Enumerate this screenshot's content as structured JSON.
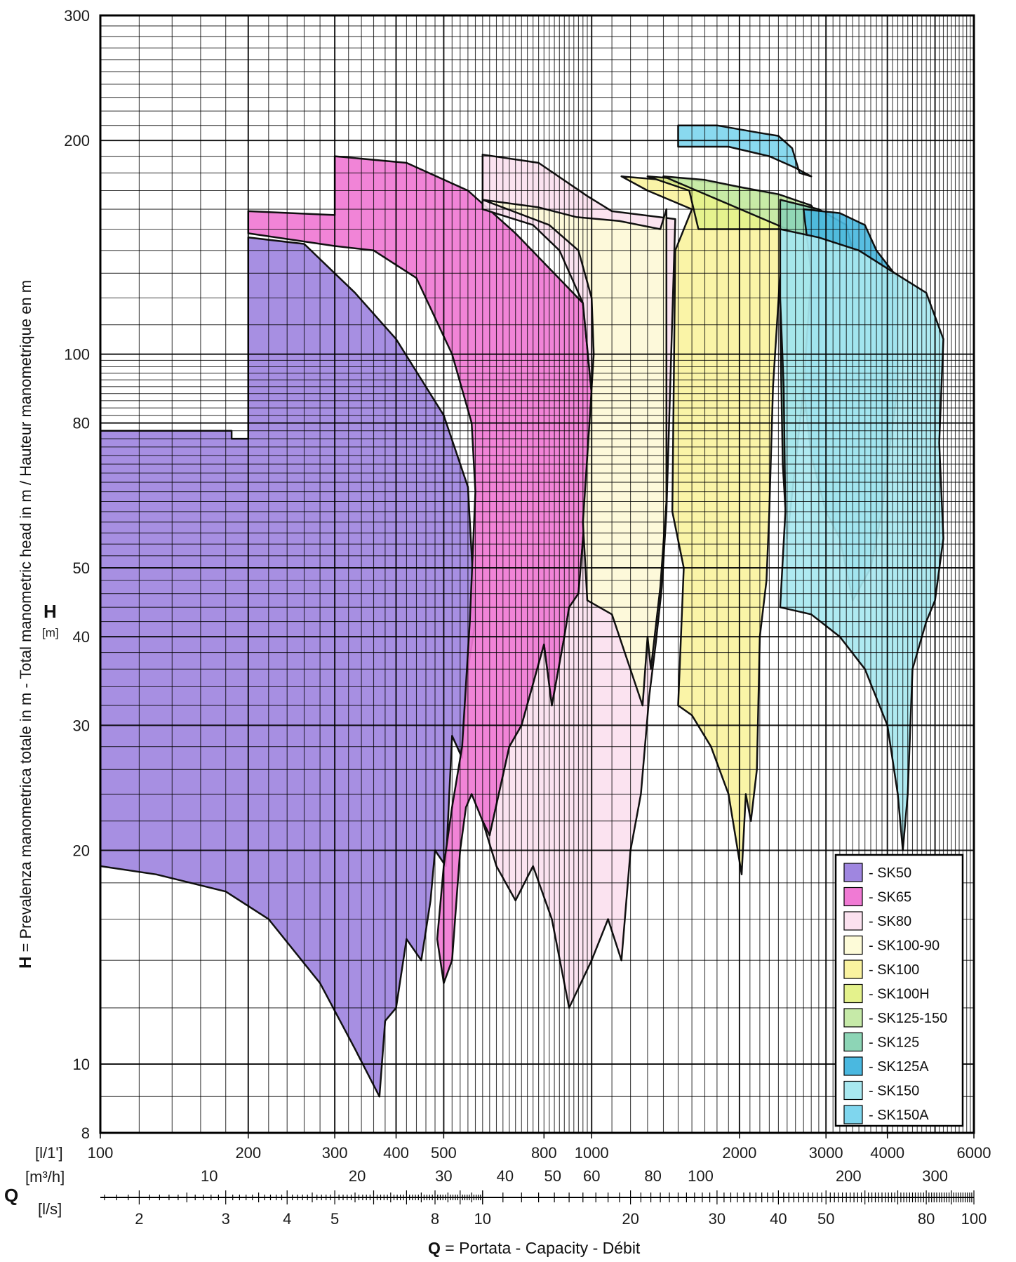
{
  "chart_data": {
    "type": "area",
    "title": "",
    "x_scale": "log",
    "y_scale": "log",
    "xlim": [
      100,
      6000
    ],
    "ylim": [
      8,
      300
    ],
    "grid": true,
    "legend_position": "bottom-right",
    "ylabel": {
      "bold": "H",
      "rest": " = Prevalenza manometrica totale in m - Total manometric head in m / Hauteur manometrique en m",
      "symbol": "H",
      "unit": "[m]"
    },
    "xlabel": {
      "bold": "Q",
      "rest": " = Portata - Capacity - Débit",
      "symbol": "Q"
    },
    "y_ticks": [
      {
        "value": 300,
        "label": "300"
      },
      {
        "value": 200,
        "label": "200"
      },
      {
        "value": 100,
        "label": "100"
      },
      {
        "value": 80,
        "label": "80"
      },
      {
        "value": 50,
        "label": "50"
      },
      {
        "value": 40,
        "label": "40"
      },
      {
        "value": 30,
        "label": "30"
      },
      {
        "value": 20,
        "label": "20"
      },
      {
        "value": 10,
        "label": "10"
      },
      {
        "value": 8,
        "label": "8"
      }
    ],
    "x_axes": [
      {
        "unit": "[l/1']",
        "ticks": [
          {
            "value": 100,
            "label": "100"
          },
          {
            "value": 200,
            "label": "200"
          },
          {
            "value": 300,
            "label": "300"
          },
          {
            "value": 400,
            "label": "400"
          },
          {
            "value": 500,
            "label": "500"
          },
          {
            "value": 800,
            "label": "800"
          },
          {
            "value": 1000,
            "label": "1000"
          },
          {
            "value": 2000,
            "label": "2000"
          },
          {
            "value": 3000,
            "label": "3000"
          },
          {
            "value": 4000,
            "label": "4000"
          },
          {
            "value": 6000,
            "label": "6000"
          }
        ]
      },
      {
        "unit": "[m³/h]",
        "ticks": [
          {
            "value": 10,
            "label": "10"
          },
          {
            "value": 20,
            "label": "20"
          },
          {
            "value": 30,
            "label": "30"
          },
          {
            "value": 40,
            "label": "40"
          },
          {
            "value": 50,
            "label": "50"
          },
          {
            "value": 60,
            "label": "60"
          },
          {
            "value": 80,
            "label": "80"
          },
          {
            "value": 100,
            "label": "100"
          },
          {
            "value": 200,
            "label": "200"
          },
          {
            "value": 300,
            "label": "300"
          }
        ]
      },
      {
        "unit": "[l/s]",
        "ticks": [
          {
            "value": 2,
            "label": "2"
          },
          {
            "value": 3,
            "label": "3"
          },
          {
            "value": 4,
            "label": "4"
          },
          {
            "value": 5,
            "label": "5"
          },
          {
            "value": 8,
            "label": "8"
          },
          {
            "value": 10,
            "label": "10"
          },
          {
            "value": 20,
            "label": "20"
          },
          {
            "value": 30,
            "label": "30"
          },
          {
            "value": 40,
            "label": "40"
          },
          {
            "value": 50,
            "label": "50"
          },
          {
            "value": 80,
            "label": "80"
          },
          {
            "value": 100,
            "label": "100"
          }
        ]
      }
    ],
    "series": [
      {
        "name": "- SK50",
        "color": "#9f86e0",
        "polygon": [
          [
            100,
            78
          ],
          [
            185,
            78
          ],
          [
            185,
            76
          ],
          [
            200,
            76
          ],
          [
            200,
            146
          ],
          [
            260,
            143
          ],
          [
            330,
            122
          ],
          [
            400,
            105
          ],
          [
            500,
            82
          ],
          [
            560,
            65
          ],
          [
            580,
            42
          ],
          [
            560,
            36
          ],
          [
            545,
            27
          ],
          [
            520,
            29
          ],
          [
            505,
            19
          ],
          [
            480,
            20
          ],
          [
            470,
            17
          ],
          [
            450,
            14
          ],
          [
            420,
            15
          ],
          [
            400,
            12
          ],
          [
            380,
            11.5
          ],
          [
            370,
            9
          ],
          [
            330,
            10.5
          ],
          [
            280,
            13
          ],
          [
            220,
            16
          ],
          [
            180,
            17.5
          ],
          [
            130,
            18.5
          ],
          [
            100,
            19
          ]
        ]
      },
      {
        "name": "- SK65",
        "color": "#f07ad4",
        "polygon": [
          [
            200,
            159
          ],
          [
            300,
            157
          ],
          [
            300,
            190
          ],
          [
            420,
            186
          ],
          [
            560,
            170
          ],
          [
            700,
            148
          ],
          [
            960,
            118
          ],
          [
            1000,
            88
          ],
          [
            980,
            65
          ],
          [
            940,
            46
          ],
          [
            900,
            44
          ],
          [
            880,
            40
          ],
          [
            830,
            32
          ],
          [
            800,
            39
          ],
          [
            720,
            30
          ],
          [
            680,
            28
          ],
          [
            620,
            21
          ],
          [
            600,
            22
          ],
          [
            570,
            24
          ],
          [
            555,
            23
          ],
          [
            540,
            20
          ],
          [
            520,
            14
          ],
          [
            500,
            13
          ],
          [
            485,
            15
          ],
          [
            500,
            19
          ],
          [
            520,
            23
          ],
          [
            545,
            28
          ],
          [
            565,
            42
          ],
          [
            580,
            64
          ],
          [
            570,
            80
          ],
          [
            520,
            100
          ],
          [
            440,
            128
          ],
          [
            360,
            140
          ],
          [
            300,
            142
          ],
          [
            200,
            148
          ]
        ]
      },
      {
        "name": "- SK80",
        "color": "#fbe1ef",
        "polygon": [
          [
            600,
            191
          ],
          [
            780,
            186
          ],
          [
            980,
            167
          ],
          [
            1100,
            159
          ],
          [
            1480,
            155
          ],
          [
            1420,
            60
          ],
          [
            1390,
            47
          ],
          [
            1350,
            39
          ],
          [
            1310,
            33
          ],
          [
            1260,
            24
          ],
          [
            1200,
            20
          ],
          [
            1150,
            14
          ],
          [
            1080,
            16
          ],
          [
            1000,
            14
          ],
          [
            900,
            12
          ],
          [
            830,
            16
          ],
          [
            760,
            19
          ],
          [
            700,
            17
          ],
          [
            640,
            19
          ],
          [
            600,
            22
          ],
          [
            620,
            21
          ],
          [
            680,
            28
          ],
          [
            720,
            30
          ],
          [
            800,
            39
          ],
          [
            830,
            32
          ],
          [
            880,
            40
          ],
          [
            900,
            44
          ],
          [
            940,
            46
          ],
          [
            980,
            65
          ],
          [
            1000,
            88
          ],
          [
            960,
            118
          ],
          [
            860,
            140
          ],
          [
            760,
            152
          ],
          [
            600,
            160
          ]
        ]
      },
      {
        "name": "- SK100-90",
        "color": "#fdfbd8",
        "polygon": [
          [
            600,
            165
          ],
          [
            780,
            161
          ],
          [
            930,
            156
          ],
          [
            1140,
            154
          ],
          [
            1380,
            150
          ],
          [
            1420,
            160
          ],
          [
            1420,
            62
          ],
          [
            1380,
            47
          ],
          [
            1320,
            36
          ],
          [
            1300,
            40
          ],
          [
            1270,
            32
          ],
          [
            1100,
            43
          ],
          [
            980,
            45
          ],
          [
            960,
            58
          ],
          [
            990,
            80
          ],
          [
            1010,
            100
          ],
          [
            1000,
            120
          ],
          [
            940,
            140
          ],
          [
            820,
            152
          ]
        ]
      },
      {
        "name": "- SK100",
        "color": "#faf3a0",
        "polygon": [
          [
            1150,
            178
          ],
          [
            1400,
            176
          ],
          [
            1600,
            172
          ],
          [
            1900,
            166
          ],
          [
            2300,
            160
          ],
          [
            2420,
            150
          ],
          [
            2420,
            130
          ],
          [
            2340,
            90
          ],
          [
            2300,
            60
          ],
          [
            2270,
            48
          ],
          [
            2200,
            40
          ],
          [
            2170,
            26
          ],
          [
            2110,
            22
          ],
          [
            2060,
            24
          ],
          [
            2020,
            18.5
          ],
          [
            1900,
            24
          ],
          [
            1750,
            28
          ],
          [
            1600,
            31
          ],
          [
            1500,
            32
          ],
          [
            1520,
            40
          ],
          [
            1540,
            50
          ],
          [
            1460,
            60
          ],
          [
            1480,
            140
          ],
          [
            1600,
            160
          ],
          [
            1300,
            170
          ]
        ]
      },
      {
        "name": "- SK100H",
        "color": "#e4f28c",
        "polygon": [
          [
            1300,
            178
          ],
          [
            1600,
            176
          ],
          [
            2000,
            172
          ],
          [
            2420,
            167
          ],
          [
            2500,
            158
          ],
          [
            2420,
            150
          ],
          [
            2300,
            150
          ],
          [
            1900,
            150
          ],
          [
            1650,
            150
          ],
          [
            1580,
            170
          ]
        ]
      },
      {
        "name": "- SK125-150",
        "color": "#c6eaa8",
        "polygon": [
          [
            1400,
            178
          ],
          [
            1700,
            176
          ],
          [
            2000,
            172
          ],
          [
            2400,
            168
          ],
          [
            2800,
            162
          ],
          [
            3000,
            150
          ],
          [
            3000,
            120
          ],
          [
            2900,
            100
          ],
          [
            2700,
            82
          ],
          [
            2450,
            80
          ],
          [
            2420,
            120
          ],
          [
            2500,
            150
          ]
        ]
      },
      {
        "name": "- SK125",
        "color": "#8dd5b6",
        "polygon": [
          [
            2420,
            165
          ],
          [
            2900,
            160
          ],
          [
            3300,
            152
          ],
          [
            3400,
            140
          ],
          [
            3200,
            128
          ],
          [
            3000,
            115
          ],
          [
            2800,
            100
          ],
          [
            2700,
            90
          ],
          [
            2600,
            70
          ],
          [
            2500,
            55
          ],
          [
            2450,
            70
          ],
          [
            2420,
            110
          ]
        ]
      },
      {
        "name": "- SK125A",
        "color": "#4ab8e0",
        "polygon": [
          [
            2700,
            160
          ],
          [
            3200,
            158
          ],
          [
            3600,
            152
          ],
          [
            3800,
            140
          ],
          [
            4200,
            128
          ],
          [
            4200,
            90
          ],
          [
            4000,
            70
          ],
          [
            3900,
            60
          ],
          [
            3700,
            50
          ],
          [
            3400,
            45
          ],
          [
            3200,
            55
          ],
          [
            3000,
            60
          ],
          [
            2800,
            72
          ],
          [
            2700,
            90
          ],
          [
            2800,
            130
          ]
        ]
      },
      {
        "name": "- SK150",
        "color": "#a8e8f0",
        "polygon": [
          [
            2420,
            150
          ],
          [
            2900,
            146
          ],
          [
            3500,
            140
          ],
          [
            4000,
            132
          ],
          [
            4800,
            122
          ],
          [
            5200,
            105
          ],
          [
            5100,
            75
          ],
          [
            5200,
            55
          ],
          [
            5000,
            45
          ],
          [
            4800,
            42
          ],
          [
            4500,
            36
          ],
          [
            4400,
            24
          ],
          [
            4300,
            20
          ],
          [
            4200,
            24
          ],
          [
            4000,
            30
          ],
          [
            3600,
            36
          ],
          [
            3200,
            40
          ],
          [
            2800,
            43
          ],
          [
            2420,
            44
          ],
          [
            2480,
            60
          ],
          [
            2460,
            90
          ],
          [
            2420,
            120
          ]
        ]
      },
      {
        "name": "- SK150A",
        "color": "#7fd6ee",
        "polygon": [
          [
            1500,
            210
          ],
          [
            1800,
            210
          ],
          [
            2200,
            205
          ],
          [
            2400,
            203
          ],
          [
            2560,
            195
          ],
          [
            2650,
            180
          ],
          [
            2800,
            178
          ],
          [
            2600,
            183
          ],
          [
            2300,
            190
          ],
          [
            1900,
            196
          ],
          [
            1500,
            196
          ]
        ]
      }
    ]
  }
}
